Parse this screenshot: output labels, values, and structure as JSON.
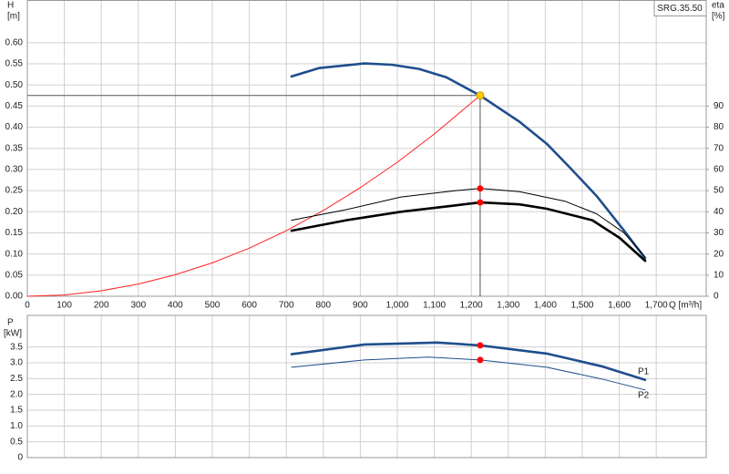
{
  "label": "SRG.35.50",
  "chart_data": [
    {
      "type": "line",
      "y_label": "H",
      "y_unit": "[m]",
      "y2_label": "eta",
      "y2_unit": "[%]",
      "x_label": "Q [m³/h]",
      "xlim": [
        0,
        1835
      ],
      "xticks": [
        0,
        100,
        200,
        300,
        400,
        500,
        600,
        700,
        800,
        900,
        {
          "value": 1000,
          "label": "1,000"
        },
        {
          "value": 1100,
          "label": "1,100"
        },
        {
          "value": 1200,
          "label": "1,200"
        },
        {
          "value": 1300,
          "label": "1,300"
        },
        {
          "value": 1400,
          "label": "1,400"
        },
        {
          "value": 1500,
          "label": "1,500"
        },
        {
          "value": 1600,
          "label": "1,600"
        },
        {
          "value": 1700,
          "label": "1,700"
        }
      ],
      "ylim": [
        0,
        0.7
      ],
      "yticks": [
        {
          "value": 0,
          "label": "0.00"
        },
        {
          "value": 0.05,
          "label": "0.05"
        },
        {
          "value": 0.1,
          "label": "0.10"
        },
        {
          "value": 0.15,
          "label": "0.15"
        },
        {
          "value": 0.2,
          "label": "0.20"
        },
        {
          "value": 0.25,
          "label": "0.25"
        },
        {
          "value": 0.3,
          "label": "0.30"
        },
        {
          "value": 0.35,
          "label": "0.35"
        },
        {
          "value": 0.4,
          "label": "0.40"
        },
        {
          "value": 0.45,
          "label": "0.45"
        },
        {
          "value": 0.5,
          "label": "0.50"
        },
        {
          "value": 0.55,
          "label": "0.55"
        },
        {
          "value": 0.6,
          "label": "0.60"
        }
      ],
      "y2lim": [
        0,
        140
      ],
      "y2ticks": [
        0,
        10,
        20,
        30,
        40,
        50,
        60,
        70,
        80,
        90
      ],
      "grid": true,
      "series": [
        {
          "color": "#ff2020",
          "weight": "thin",
          "x": [
            0,
            100,
            200,
            300,
            400,
            500,
            600,
            700,
            800,
            900,
            1000,
            1100,
            1224
          ],
          "values": [
            0,
            0.003,
            0.013,
            0.029,
            0.051,
            0.079,
            0.114,
            0.155,
            0.203,
            0.257,
            0.317,
            0.384,
            0.475
          ]
        },
        {
          "color": "#1f4e8c",
          "weight": "bold",
          "x": [
            714,
            788,
            911,
            985,
            1059,
            1133,
            1224,
            1330,
            1404,
            1466,
            1539,
            1613,
            1670
          ],
          "values": [
            0.52,
            0.54,
            0.551,
            0.548,
            0.538,
            0.518,
            0.475,
            0.413,
            0.361,
            0.305,
            0.237,
            0.155,
            0.09
          ]
        },
        {
          "color": "#000000",
          "weight": "thin",
          "axis": "y2",
          "x": [
            714,
            862,
            1010,
            1158,
            1224,
            1330,
            1453,
            1539,
            1613,
            1670
          ],
          "values": [
            36,
            41,
            47,
            50,
            51,
            49.5,
            45,
            39,
            30,
            18.5
          ]
        },
        {
          "color": "#000000",
          "weight": "bold",
          "axis": "y2",
          "x": [
            714,
            862,
            1010,
            1158,
            1224,
            1330,
            1404,
            1527,
            1601,
            1670
          ],
          "values": [
            31,
            36,
            40,
            43,
            44.4,
            43.5,
            41.4,
            36,
            27.6,
            16.8
          ]
        }
      ],
      "duty_point": {
        "x": 1224,
        "y": 0.475,
        "color": "#ffcc00"
      },
      "markers": [
        {
          "x": 1224,
          "value": 51,
          "axis": "y2",
          "color": "#ff0000"
        },
        {
          "x": 1224,
          "value": 44.4,
          "axis": "y2",
          "color": "#ff0000"
        }
      ]
    },
    {
      "type": "line",
      "y_label": "P",
      "y_unit": "[kW]",
      "xlim": [
        0,
        1835
      ],
      "ylim": [
        0,
        4.5
      ],
      "yticks": [
        0,
        0.5,
        {
          "value": 1,
          "label": "1.0"
        },
        1.5,
        {
          "value": 2,
          "label": "2.0"
        },
        2.5,
        {
          "value": 3,
          "label": "3.0"
        },
        3.5
      ],
      "grid": true,
      "series": [
        {
          "name": "P1",
          "color": "#1f4e8c",
          "weight": "bold",
          "x": [
            714,
            911,
            1010,
            1108,
            1224,
            1404,
            1552,
            1670
          ],
          "values": [
            3.27,
            3.58,
            3.61,
            3.64,
            3.55,
            3.29,
            2.89,
            2.46
          ]
        },
        {
          "name": "P2",
          "color": "#1f4e8c",
          "weight": "thin",
          "x": [
            714,
            911,
            1084,
            1224,
            1404,
            1552,
            1670
          ],
          "values": [
            2.86,
            3.09,
            3.18,
            3.09,
            2.86,
            2.49,
            2.14
          ]
        }
      ],
      "markers": [
        {
          "x": 1224,
          "value": 3.55,
          "color": "#ff0000"
        },
        {
          "x": 1224,
          "value": 3.09,
          "color": "#ff0000"
        }
      ]
    }
  ]
}
